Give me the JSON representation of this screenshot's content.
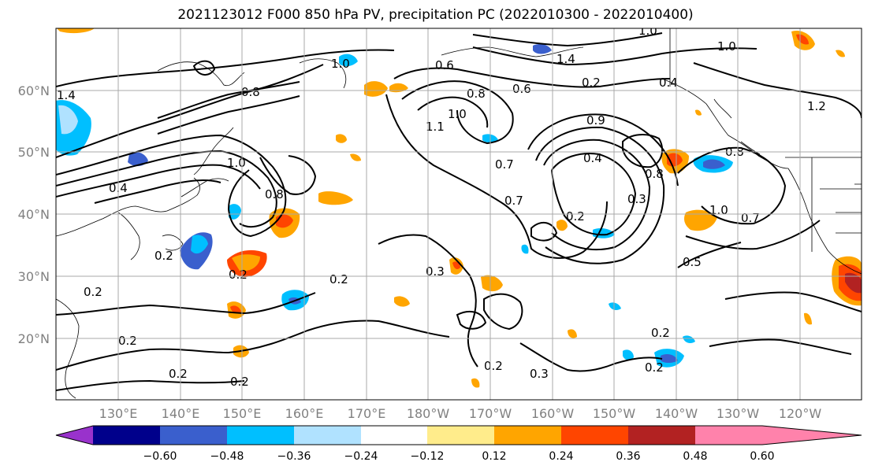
{
  "title": "2021123012 F000 850 hPa PV, precipitation PC (2022010300 - 2022010400)",
  "lat_labels": [
    "60°N",
    "50°N",
    "40°N",
    "30°N",
    "20°N"
  ],
  "lon_labels": [
    "130°E",
    "140°E",
    "150°E",
    "160°E",
    "170°E",
    "180°W",
    "170°W",
    "160°W",
    "150°W",
    "140°W",
    "130°W",
    "120°W"
  ],
  "colorbar": {
    "colors": [
      "#9932cc",
      "#00008b",
      "#3a5fcd",
      "#00bfff",
      "#b0e2ff",
      "#ffffff",
      "#ffec8b",
      "#ffa500",
      "#ff4500",
      "#b22222",
      "#ff82ab"
    ],
    "tick_labels": [
      "−0.60",
      "−0.48",
      "−0.36",
      "−0.24",
      "−0.12",
      "0.12",
      "0.24",
      "0.36",
      "0.48",
      "0.60"
    ]
  },
  "contour_labels": [
    "1.4",
    "1.2",
    "1.0",
    "0.8",
    "0.6",
    "0.4",
    "0.2",
    "0.7",
    "0.3",
    "0.5",
    "0.9",
    "1.1"
  ]
}
